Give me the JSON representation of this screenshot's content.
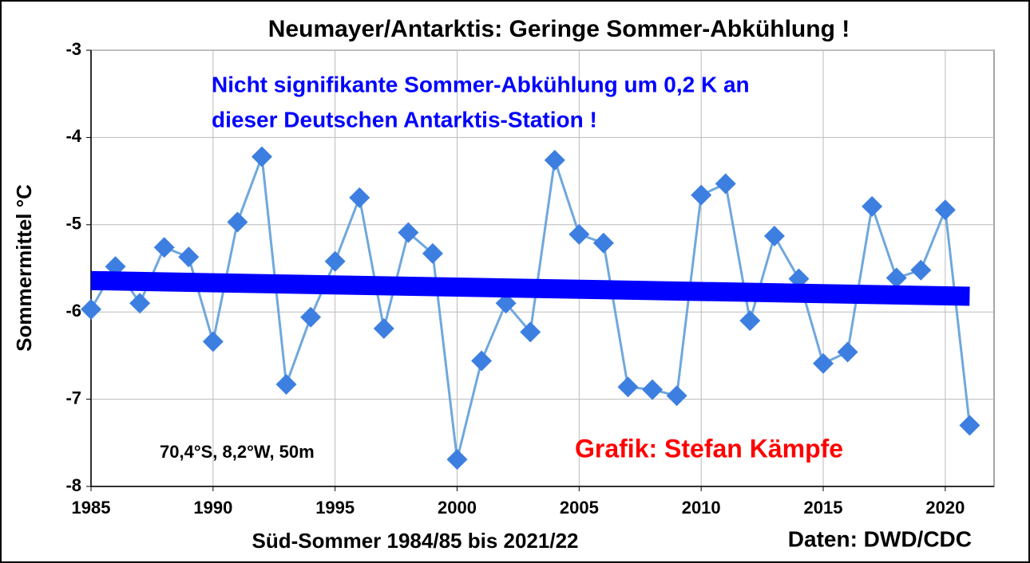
{
  "chart_data": {
    "type": "line",
    "title": "Neumayer/Antarktis:  Geringe Sommer-Abkühlung  !",
    "x_label": "Süd-Sommer 1984/85 bis 2021/22",
    "y_label": "Sommermittel °C",
    "annotations": [
      {
        "text": "Nicht signifikante Sommer-Abkühlung um 0,2 K an",
        "color": "#0000ff"
      },
      {
        "text": "dieser Deutschen Antarktis-Station !",
        "color": "#0000ff"
      },
      {
        "text": "70,4°S, 8,2°W, 50m",
        "color": "#000000"
      },
      {
        "text": "Grafik: Stefan Kämpfe",
        "color": "#ff0000"
      },
      {
        "text": "Daten: DWD/CDC",
        "color": "#000000"
      }
    ],
    "x": [
      1985,
      1986,
      1987,
      1988,
      1989,
      1990,
      1991,
      1992,
      1993,
      1994,
      1995,
      1996,
      1997,
      1998,
      1999,
      2000,
      2001,
      2002,
      2003,
      2004,
      2005,
      2006,
      2007,
      2008,
      2009,
      2010,
      2011,
      2012,
      2013,
      2014,
      2015,
      2016,
      2017,
      2018,
      2019,
      2020,
      2021
    ],
    "series": [
      {
        "color": "#6fa8dc",
        "marker_color": "#3d7fe0",
        "values": [
          -5.97,
          -5.48,
          -5.9,
          -5.26,
          -5.37,
          -6.34,
          -4.97,
          -4.22,
          -6.83,
          -6.06,
          -5.42,
          -4.69,
          -6.19,
          -5.09,
          -5.33,
          -7.69,
          -6.56,
          -5.9,
          -6.23,
          -4.26,
          -5.11,
          -5.21,
          -6.86,
          -6.89,
          -6.96,
          -4.66,
          -4.53,
          -6.1,
          -5.13,
          -5.62,
          -6.59,
          -6.46,
          -4.79,
          -5.61,
          -5.52,
          -4.83,
          -7.3
        ]
      }
    ],
    "trend": {
      "color": "#0000ff",
      "x": [
        1985,
        2021
      ],
      "values": [
        -5.64,
        -5.82
      ]
    },
    "xlim": [
      1985,
      2022
    ],
    "ylim": [
      -8,
      -3
    ],
    "xticks": [
      1985,
      1990,
      1995,
      2000,
      2005,
      2010,
      2015,
      2020
    ],
    "yticks": [
      -8,
      -7,
      -6,
      -5,
      -4,
      -3
    ],
    "grid": true
  }
}
